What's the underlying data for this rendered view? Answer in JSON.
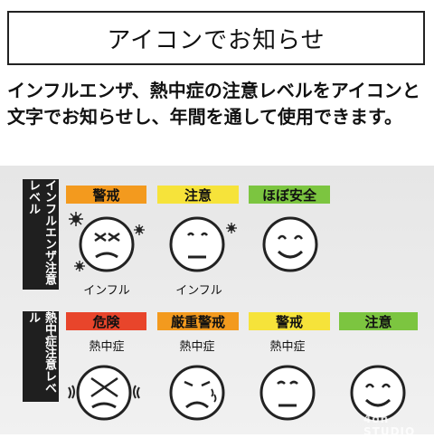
{
  "title": "アイコンでお知らせ",
  "description": "インフルエンザ、熱中症の注意レベルをアイコンと文字でお知らせし、年間を通して使用できます。",
  "influenza": {
    "side_label": "インフルエンザ注意レベル",
    "levels": [
      {
        "tag": "警戒",
        "color": "#f39a1e",
        "caption": "インフル"
      },
      {
        "tag": "注意",
        "color": "#f6e33a",
        "caption": "インフル"
      },
      {
        "tag": "ほぼ安全",
        "color": "#7cc540",
        "caption": ""
      }
    ]
  },
  "heatstroke": {
    "side_label": "熱中症注意レベル",
    "levels": [
      {
        "tag": "危険",
        "color": "#e8452b",
        "caption": "熱中症"
      },
      {
        "tag": "厳重警戒",
        "color": "#f39a1e",
        "caption": "熱中症"
      },
      {
        "tag": "警戒",
        "color": "#f6e33a",
        "caption": "熱中症"
      },
      {
        "tag": "注意",
        "color": "#7cc540",
        "caption": ""
      }
    ]
  },
  "watermark": "4on STUDIO"
}
